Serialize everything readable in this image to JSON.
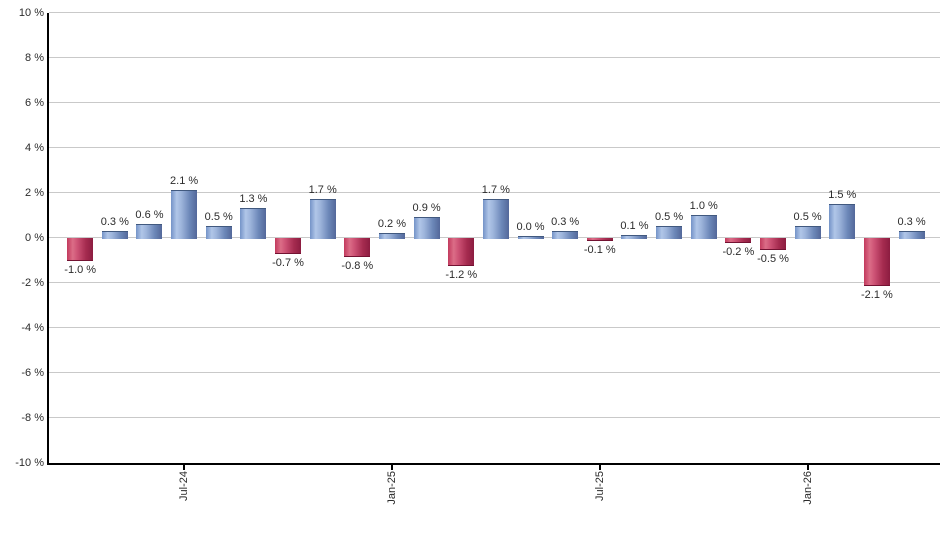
{
  "chart_data": {
    "type": "bar",
    "title": "",
    "xlabel": "",
    "ylabel": "",
    "unit": "%",
    "ylim": [
      -10,
      10
    ],
    "grid": true,
    "legend": "none",
    "y_tick_labels": [
      "10 %",
      "8 %",
      "6 %",
      "4 %",
      "2 %",
      "0 %",
      "-2 %",
      "-4 %",
      "-6 %",
      "-8 %",
      "-10 %"
    ],
    "y_tick_values": [
      10,
      8,
      6,
      4,
      2,
      0,
      -2,
      -4,
      -6,
      -8,
      -10
    ],
    "x_ticks": [
      {
        "label": "Jul-24",
        "bar_index": 3
      },
      {
        "label": "Jan-25",
        "bar_index": 9
      },
      {
        "label": "Jul-25",
        "bar_index": 15
      },
      {
        "label": "Jan-26",
        "bar_index": 21
      }
    ],
    "bars": [
      {
        "value": -1.0,
        "label": "-1.0 %"
      },
      {
        "value": 0.3,
        "label": "0.3 %"
      },
      {
        "value": 0.6,
        "label": "0.6 %"
      },
      {
        "value": 2.1,
        "label": "2.1 %"
      },
      {
        "value": 0.5,
        "label": "0.5 %"
      },
      {
        "value": 1.3,
        "label": "1.3 %"
      },
      {
        "value": -0.7,
        "label": "-0.7 %"
      },
      {
        "value": 1.7,
        "label": "1.7 %"
      },
      {
        "value": -0.8,
        "label": "-0.8 %"
      },
      {
        "value": 0.2,
        "label": "0.2 %"
      },
      {
        "value": 0.9,
        "label": "0.9 %"
      },
      {
        "value": -1.2,
        "label": "-1.2 %"
      },
      {
        "value": 1.7,
        "label": "1.7 %"
      },
      {
        "value": 0.0,
        "label": "0.0 %"
      },
      {
        "value": 0.3,
        "label": "0.3 %"
      },
      {
        "value": -0.1,
        "label": "-0.1 %"
      },
      {
        "value": 0.1,
        "label": "0.1 %"
      },
      {
        "value": 0.5,
        "label": "0.5 %"
      },
      {
        "value": 1.0,
        "label": "1.0 %"
      },
      {
        "value": -0.2,
        "label": "-0.2 %"
      },
      {
        "value": -0.5,
        "label": "-0.5 %"
      },
      {
        "value": 0.5,
        "label": "0.5 %"
      },
      {
        "value": 1.5,
        "label": "1.5 %"
      },
      {
        "value": -2.1,
        "label": "-2.1 %"
      },
      {
        "value": 0.3,
        "label": "0.3 %"
      }
    ],
    "colors": {
      "positive_bar": "#7493c7",
      "positive_bar_light": "#b0c6e8",
      "positive_bar_dark": "#53689a",
      "negative_bar": "#c23a5d",
      "negative_bar_light": "#db6d87",
      "negative_bar_dark": "#8c1c40",
      "gridline": "#c9c9c9",
      "axis": "#000000",
      "label_text": "#2b2b2b",
      "background": "#ffffff"
    }
  }
}
